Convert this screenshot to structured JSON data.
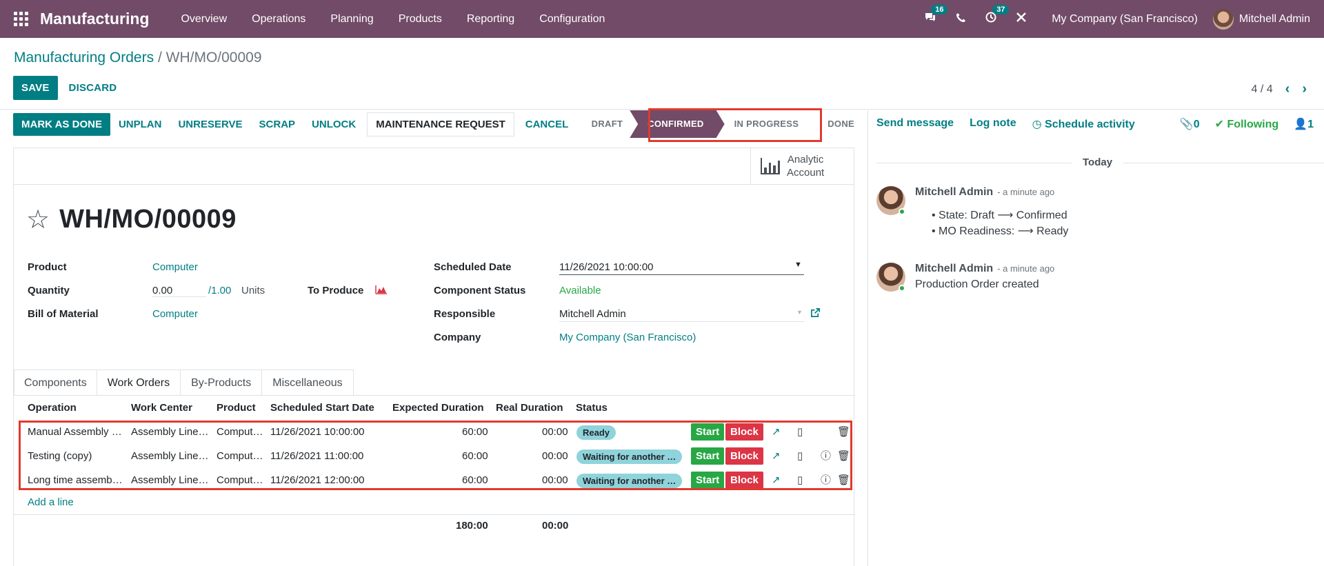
{
  "navbar": {
    "app_name": "Manufacturing",
    "menu": [
      "Overview",
      "Operations",
      "Planning",
      "Products",
      "Reporting",
      "Configuration"
    ],
    "chat_badge": "16",
    "activity_badge": "37",
    "company": "My Company (San Francisco)",
    "user": "Mitchell Admin"
  },
  "breadcrumb": {
    "parent": "Manufacturing Orders",
    "separator": "/",
    "current": "WH/MO/00009"
  },
  "control": {
    "save_label": "SAVE",
    "discard_label": "DISCARD",
    "pager": "4 / 4"
  },
  "statusbar": {
    "buttons": [
      "MARK AS DONE",
      "UNPLAN",
      "UNRESERVE",
      "SCRAP",
      "UNLOCK",
      "MAINTENANCE REQUEST",
      "CANCEL"
    ],
    "stages": [
      "DRAFT",
      "CONFIRMED",
      "IN PROGRESS",
      "DONE"
    ],
    "active_stage": "CONFIRMED"
  },
  "smart_button": {
    "line1": "Analytic",
    "line2": "Account"
  },
  "record": {
    "title": "WH/MO/00009"
  },
  "fields_left": {
    "product_label": "Product",
    "product_value": "Computer",
    "quantity_label": "Quantity",
    "quantity_value": "0.00",
    "quantity_total": "/1.00",
    "quantity_uom": "Units",
    "to_produce_label": "To Produce",
    "bom_label": "Bill of Material",
    "bom_value": "Computer"
  },
  "fields_right": {
    "scheduled_label": "Scheduled Date",
    "scheduled_value": "11/26/2021 10:00:00",
    "component_label": "Component Status",
    "component_value": "Available",
    "responsible_label": "Responsible",
    "responsible_value": "Mitchell Admin",
    "company_label": "Company",
    "company_value": "My Company (San Francisco)"
  },
  "tabs": [
    "Components",
    "Work Orders",
    "By-Products",
    "Miscellaneous"
  ],
  "active_tab": "Work Orders",
  "table": {
    "headers": [
      "Operation",
      "Work Center",
      "Product",
      "Scheduled Start Date",
      "Expected Duration",
      "Real Duration",
      "Status"
    ],
    "rows": [
      {
        "operation": "Manual Assembly …",
        "work_center": "Assembly Line…",
        "product": "Comput…",
        "start": "11/26/2021 10:00:00",
        "expected": "60:00",
        "real": "00:00",
        "status": "Ready"
      },
      {
        "operation": "Testing (copy)",
        "work_center": "Assembly Line…",
        "product": "Comput…",
        "start": "11/26/2021 11:00:00",
        "expected": "60:00",
        "real": "00:00",
        "status": "Waiting for another …"
      },
      {
        "operation": "Long time assemb…",
        "work_center": "Assembly Line…",
        "product": "Comput…",
        "start": "11/26/2021 12:00:00",
        "expected": "60:00",
        "real": "00:00",
        "status": "Waiting for another …"
      }
    ],
    "start_label": "Start",
    "block_label": "Block",
    "add_line": "Add a line",
    "total_expected": "180:00",
    "total_real": "00:00"
  },
  "chatter": {
    "send_message": "Send message",
    "log_note": "Log note",
    "schedule_activity": "Schedule activity",
    "attachments": "0",
    "following": "Following",
    "followers": "1",
    "today": "Today",
    "messages": [
      {
        "author": "Mitchell Admin",
        "time": "- a minute ago",
        "lines": [
          "State: Draft ⟶ Confirmed",
          "MO Readiness: ⟶ Ready"
        ]
      },
      {
        "author": "Mitchell Admin",
        "time": "- a minute ago",
        "lines": [
          "Production Order created"
        ]
      }
    ]
  },
  "colors": {
    "brand": "#714B67",
    "accent": "#017E84",
    "highlight_box": "#e03a2e",
    "start_button": "#28a745",
    "block_button": "#dc3545",
    "status_pill": "#8fd3db"
  }
}
